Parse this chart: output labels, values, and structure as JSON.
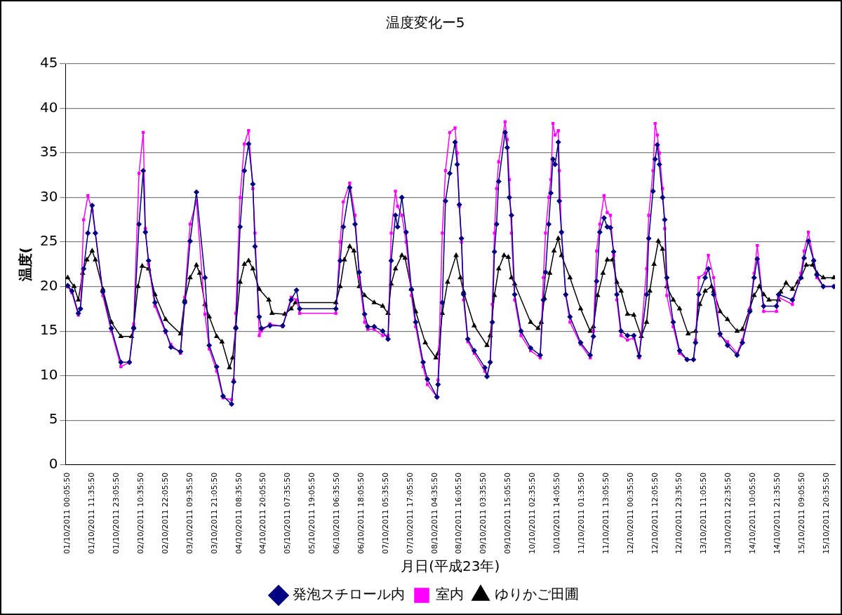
{
  "chart_data": {
    "type": "line",
    "title": "温度変化ー5",
    "xlabel": "月日(平成23年)",
    "ylabel": "温度(",
    "xlim": [
      "2011-09-30T23:05",
      "2011-10-16T00:35"
    ],
    "xticks": [
      {
        "value": "2011-10-01T00:05",
        "label": "01/10/2011 00:05:50"
      },
      {
        "value": "2011-10-01T11:35",
        "label": "01/10/2011 11:35:50"
      },
      {
        "value": "2011-10-01T23:05",
        "label": "01/10/2011 23:05:50"
      },
      {
        "value": "2011-10-02T10:35",
        "label": "02/10/2011 10:35:50"
      },
      {
        "value": "2011-10-02T22:05",
        "label": "02/10/2011 22:05:50"
      },
      {
        "value": "2011-10-03T09:35",
        "label": "03/10/2011 09:35:50"
      },
      {
        "value": "2011-10-03T21:05",
        "label": "03/10/2011 21:05:50"
      },
      {
        "value": "2011-10-04T08:35",
        "label": "04/10/2011 08:35:50"
      },
      {
        "value": "2011-10-04T20:05",
        "label": "04/10/2011 20:05:50"
      },
      {
        "value": "2011-10-05T07:35",
        "label": "05/10/2011 07:35:50"
      },
      {
        "value": "2011-10-05T19:05",
        "label": "05/10/2011 19:05:50"
      },
      {
        "value": "2011-10-06T06:35",
        "label": "06/10/2011 06:35:50"
      },
      {
        "value": "2011-10-06T18:05",
        "label": "06/10/2011 18:05:50"
      },
      {
        "value": "2011-10-07T05:35",
        "label": "07/10/2011 05:35:50"
      },
      {
        "value": "2011-10-07T17:05",
        "label": "07/10/2011 17:05:50"
      },
      {
        "value": "2011-10-08T04:35",
        "label": "08/10/2011 04:35:50"
      },
      {
        "value": "2011-10-08T16:05",
        "label": "08/10/2011 16:05:50"
      },
      {
        "value": "2011-10-09T03:35",
        "label": "09/10/2011 03:35:50"
      },
      {
        "value": "2011-10-09T15:05",
        "label": "09/10/2011 15:05:50"
      },
      {
        "value": "2011-10-10T02:35",
        "label": "10/10/2011 02:35:50"
      },
      {
        "value": "2011-10-10T14:05",
        "label": "10/10/2011 14:05:50"
      },
      {
        "value": "2011-10-11T01:35",
        "label": "11/10/2011 01:35:50"
      },
      {
        "value": "2011-10-11T13:05",
        "label": "11/10/2011 13:05:50"
      },
      {
        "value": "2011-10-12T00:35",
        "label": "12/10/2011 00:35:50"
      },
      {
        "value": "2011-10-12T12:05",
        "label": "12/10/2011 12:05:50"
      },
      {
        "value": "2011-10-12T23:35",
        "label": "12/10/2011 23:35:50"
      },
      {
        "value": "2011-10-13T11:05",
        "label": "13/10/2011 11:05:50"
      },
      {
        "value": "2011-10-13T22:35",
        "label": "13/10/2011 22:35:50"
      },
      {
        "value": "2011-10-14T10:05",
        "label": "14/10/2011 10:05:50"
      },
      {
        "value": "2011-10-14T21:35",
        "label": "14/10/2011 21:35:50"
      },
      {
        "value": "2011-10-15T09:05",
        "label": "15/10/2011 09:05:50"
      },
      {
        "value": "2011-10-15T20:35",
        "label": "15/10/2011 20:35:50"
      }
    ],
    "ylim": [
      0,
      45
    ],
    "yticks": [
      0,
      5,
      10,
      15,
      20,
      25,
      30,
      35,
      40,
      45
    ],
    "grid": "y",
    "legend": "bottom",
    "line_style": "solid",
    "x": [
      "2011-10-01T00:05",
      "2011-10-01T02:05",
      "2011-10-01T05:05",
      "2011-10-01T06:05",
      "2011-10-01T07:35",
      "2011-10-01T09:35",
      "2011-10-01T11:35",
      "2011-10-01T13:05",
      "2011-10-01T16:35",
      "2011-10-01T20:35",
      "2011-10-02T01:05",
      "2011-10-02T05:05",
      "2011-10-02T07:05",
      "2011-10-02T09:35",
      "2011-10-02T11:35",
      "2011-10-02T12:35",
      "2011-10-02T14:05",
      "2011-10-02T17:05",
      "2011-10-02T22:05",
      "2011-10-03T00:35",
      "2011-10-03T05:05",
      "2011-10-03T07:05",
      "2011-10-03T09:35",
      "2011-10-03T12:35",
      "2011-10-03T16:35",
      "2011-10-03T18:35",
      "2011-10-03T22:05",
      "2011-10-04T01:05",
      "2011-10-04T05:05",
      "2011-10-04T06:05",
      "2011-10-04T07:05",
      "2011-10-04T09:05",
      "2011-10-04T11:05",
      "2011-10-04T13:05",
      "2011-10-04T15:05",
      "2011-10-04T16:05",
      "2011-10-04T18:05",
      "2011-10-04T19:05",
      "2011-10-04T23:05",
      "2011-10-05T05:05",
      "2011-10-05T09:05",
      "2011-10-05T11:35",
      "2011-10-05T13:05",
      "2011-10-06T06:05",
      "2011-10-06T08:05",
      "2011-10-06T09:35",
      "2011-10-06T12:35",
      "2011-10-06T15:05",
      "2011-10-06T17:05",
      "2011-10-06T19:35",
      "2011-10-06T21:05",
      "2011-10-07T00:05",
      "2011-10-07T04:05",
      "2011-10-07T06:35",
      "2011-10-07T08:05",
      "2011-10-07T10:05",
      "2011-10-07T11:05",
      "2011-10-07T13:05",
      "2011-10-07T15:05",
      "2011-10-07T17:35",
      "2011-10-07T19:35",
      "2011-10-07T23:05",
      "2011-10-08T01:05",
      "2011-10-08T05:35",
      "2011-10-08T06:05",
      "2011-10-08T08:05",
      "2011-10-08T09:35",
      "2011-10-08T11:35",
      "2011-10-08T14:05",
      "2011-10-08T15:05",
      "2011-10-08T16:05",
      "2011-10-08T17:05",
      "2011-10-08T18:05",
      "2011-10-08T20:05",
      "2011-10-08T23:05",
      "2011-10-09T04:05",
      "2011-10-09T05:05",
      "2011-10-09T06:35",
      "2011-10-09T07:35",
      "2011-10-09T08:35",
      "2011-10-09T09:35",
      "2011-10-09T10:35",
      "2011-10-09T13:35",
      "2011-10-09T14:35",
      "2011-10-09T15:35",
      "2011-10-09T16:35",
      "2011-10-09T18:05",
      "2011-10-09T21:05",
      "2011-10-10T01:35",
      "2011-10-10T06:05",
      "2011-10-10T07:35",
      "2011-10-10T08:35",
      "2011-10-10T10:05",
      "2011-10-10T11:05",
      "2011-10-10T12:05",
      "2011-10-10T13:05",
      "2011-10-10T14:35",
      "2011-10-10T15:05",
      "2011-10-10T16:05",
      "2011-10-10T18:05",
      "2011-10-10T20:05",
      "2011-10-11T01:05",
      "2011-10-11T05:35",
      "2011-10-11T07:05",
      "2011-10-11T08:35",
      "2011-10-11T10:05",
      "2011-10-11T12:05",
      "2011-10-11T13:35",
      "2011-10-11T15:05",
      "2011-10-11T16:35",
      "2011-10-11T18:05",
      "2011-10-11T20:05",
      "2011-10-11T23:05",
      "2011-10-12T02:05",
      "2011-10-12T04:35",
      "2011-10-12T08:05",
      "2011-10-12T09:05",
      "2011-10-12T11:05",
      "2011-10-12T12:05",
      "2011-10-12T13:05",
      "2011-10-12T14:05",
      "2011-10-12T15:35",
      "2011-10-12T16:35",
      "2011-10-12T17:35",
      "2011-10-12T20:35",
      "2011-10-12T23:35",
      "2011-10-13T03:05",
      "2011-10-13T06:05",
      "2011-10-13T07:05",
      "2011-10-13T08:35",
      "2011-10-13T11:35",
      "2011-10-13T13:05",
      "2011-10-13T15:35",
      "2011-10-13T18:35",
      "2011-10-13T22:05",
      "2011-10-14T02:35",
      "2011-10-14T05:05",
      "2011-10-14T08:35",
      "2011-10-14T10:35",
      "2011-10-14T12:05",
      "2011-10-14T15:05",
      "2011-10-14T21:05",
      "2011-10-14T22:05",
      "2011-10-15T04:35",
      "2011-10-15T08:35",
      "2011-10-15T10:05",
      "2011-10-15T12:05",
      "2011-10-15T14:35",
      "2011-10-15T16:05",
      "2011-10-15T19:05",
      "2011-10-16T00:05"
    ],
    "series": [
      {
        "name": "発泡スチロール内",
        "color": "#000080",
        "marker": "diamond",
        "values": [
          20.1,
          19.5,
          17,
          17.5,
          22,
          26,
          29.1,
          26,
          19.4,
          15.3,
          11.5,
          11.5,
          15.3,
          27,
          33,
          26.1,
          22.9,
          18.2,
          15,
          13.2,
          12.7,
          18.2,
          25.1,
          30.6,
          21,
          13.4,
          11,
          7.7,
          6.8,
          9.3,
          15.3,
          26.7,
          33,
          36,
          31.5,
          24.5,
          16.6,
          15.3,
          15.6,
          15.6,
          18.5,
          19.6,
          17.5,
          17.5,
          22.9,
          26.7,
          31.1,
          27,
          21.6,
          16.9,
          15.5,
          15.5,
          15,
          14.1,
          22.9,
          28,
          26.7,
          30,
          26.1,
          19.7,
          16,
          11.5,
          9.6,
          7.6,
          9,
          18.2,
          29.6,
          32.7,
          36.2,
          33.7,
          29.2,
          25.4,
          19.1,
          14.1,
          12.8,
          10.9,
          9.9,
          11.5,
          16,
          23.9,
          27,
          31.8,
          37.3,
          35.6,
          30,
          28,
          19.1,
          15,
          13.1,
          12.3,
          18.5,
          21.6,
          27,
          30.5,
          34.3,
          33.7,
          36.2,
          29.6,
          26.1,
          19.1,
          16.6,
          13.7,
          12.3,
          14.4,
          20.6,
          26.1,
          27.7,
          26.7,
          26.6,
          23.9,
          19.1,
          15,
          14.5,
          14.5,
          12.2,
          19.1,
          25.4,
          30.7,
          34.3,
          35.9,
          33.7,
          30,
          27.5,
          21,
          16,
          12.8,
          11.8,
          11.8,
          13.7,
          19.1,
          21,
          22,
          19.1,
          14.7,
          13.4,
          12.3,
          13.7,
          17.2,
          21,
          23.1,
          17.8,
          17.8,
          19.1,
          18.5,
          21,
          23.2,
          25.1,
          22.9,
          21.3,
          20,
          20
        ]
      },
      {
        "name": "室内",
        "color": "#ff00ff",
        "marker": "square",
        "values": [
          20,
          19.3,
          16.8,
          17.5,
          27.5,
          30.2,
          28.5,
          26,
          19,
          15,
          11,
          11.5,
          15.8,
          32.7,
          37.3,
          26.5,
          22.5,
          17.8,
          14.8,
          13.5,
          12.5,
          18.8,
          27,
          29.6,
          16.9,
          13,
          10.5,
          7.5,
          7.3,
          9.5,
          17,
          30,
          36,
          37.5,
          31,
          26,
          14.5,
          15,
          15.8,
          15.5,
          18.8,
          18.5,
          17,
          17,
          25,
          29.5,
          31.6,
          28,
          21,
          16,
          15.2,
          15.2,
          14.5,
          14.5,
          26,
          30.7,
          29,
          28,
          25,
          19,
          15.5,
          11,
          9,
          7.6,
          9.5,
          26,
          33,
          37.3,
          37.8,
          35,
          29,
          25,
          18.5,
          13.8,
          12.5,
          10.5,
          10,
          11.5,
          18,
          26,
          31,
          34,
          38.5,
          36.5,
          32,
          26,
          18.5,
          14.5,
          12.8,
          12,
          21,
          26,
          30,
          32,
          38.3,
          37,
          37.5,
          33,
          26,
          19,
          16,
          13.5,
          12,
          15,
          24,
          27,
          30.2,
          28.3,
          28,
          23.5,
          18.5,
          14.5,
          14,
          14.2,
          12,
          22,
          28,
          33,
          38.3,
          37,
          35,
          31,
          26.5,
          19,
          15.5,
          12.5,
          11.8,
          11.8,
          14,
          21,
          21.5,
          23.5,
          21,
          14.5,
          13.8,
          12.5,
          14,
          17.5,
          21.5,
          24.6,
          17.2,
          17.2,
          18.8,
          18,
          21.5,
          24,
          26.1,
          23,
          21,
          20,
          20
        ]
      },
      {
        "name": "ゆりかご田圃",
        "color": "#000000",
        "marker": "triangle",
        "x": [
          "2011-10-01T00:05",
          "2011-10-01T03:05",
          "2011-10-01T05:05",
          "2011-10-01T07:05",
          "2011-10-01T09:05",
          "2011-10-01T11:35",
          "2011-10-01T13:05",
          "2011-10-01T16:35",
          "2011-10-01T20:35",
          "2011-10-02T01:05",
          "2011-10-02T06:05",
          "2011-10-02T07:05",
          "2011-10-02T09:05",
          "2011-10-02T11:05",
          "2011-10-02T14:05",
          "2011-10-02T17:05",
          "2011-10-02T22:05",
          "2011-10-03T05:05",
          "2011-10-03T07:05",
          "2011-10-03T09:35",
          "2011-10-03T12:35",
          "2011-10-03T14:05",
          "2011-10-03T16:35",
          "2011-10-03T18:35",
          "2011-10-03T22:05",
          "2011-10-04T00:35",
          "2011-10-04T04:05",
          "2011-10-04T05:35",
          "2011-10-04T07:05",
          "2011-10-04T09:05",
          "2011-10-04T11:05",
          "2011-10-04T13:05",
          "2011-10-04T15:05",
          "2011-10-04T18:05",
          "2011-10-04T22:35",
          "2011-10-05T00:05",
          "2011-10-05T06:05",
          "2011-10-05T09:05",
          "2011-10-05T11:05",
          "2011-10-06T06:05",
          "2011-10-06T08:05",
          "2011-10-06T10:05",
          "2011-10-06T12:35",
          "2011-10-06T14:35",
          "2011-10-06T17:05",
          "2011-10-06T19:35",
          "2011-10-07T00:05",
          "2011-10-07T04:05",
          "2011-10-07T06:35",
          "2011-10-07T08:05",
          "2011-10-07T10:05",
          "2011-10-07T13:05",
          "2011-10-07T14:35",
          "2011-10-07T17:35",
          "2011-10-07T19:35",
          "2011-10-08T00:05",
          "2011-10-08T05:05",
          "2011-10-08T06:05",
          "2011-10-08T08:05",
          "2011-10-08T10:35",
          "2011-10-08T14:35",
          "2011-10-08T16:35",
          "2011-10-08T18:05",
          "2011-10-08T23:05",
          "2011-10-09T05:05",
          "2011-10-09T06:35",
          "2011-10-09T08:35",
          "2011-10-09T10:35",
          "2011-10-09T13:05",
          "2011-10-09T15:05",
          "2011-10-09T16:35",
          "2011-10-09T18:05",
          "2011-10-10T01:35",
          "2011-10-10T05:05",
          "2011-10-10T06:35",
          "2011-10-10T08:05",
          "2011-10-10T10:35",
          "2011-10-10T12:35",
          "2011-10-10T14:35",
          "2011-10-10T16:05",
          "2011-10-10T20:05",
          "2011-10-11T01:05",
          "2011-10-11T05:35",
          "2011-10-11T07:05",
          "2011-10-11T09:05",
          "2011-10-11T11:35",
          "2011-10-11T13:35",
          "2011-10-11T16:05",
          "2011-10-11T18:05",
          "2011-10-11T20:05",
          "2011-10-11T23:05",
          "2011-10-12T02:05",
          "2011-10-12T05:35",
          "2011-10-12T08:05",
          "2011-10-12T09:35",
          "2011-10-12T11:35",
          "2011-10-12T13:35",
          "2011-10-12T15:35",
          "2011-10-12T17:35",
          "2011-10-12T20:35",
          "2011-10-12T23:35",
          "2011-10-13T03:35",
          "2011-10-13T07:05",
          "2011-10-13T09:05",
          "2011-10-13T11:35",
          "2011-10-13T14:35",
          "2011-10-13T15:35",
          "2011-10-13T18:35",
          "2011-10-13T22:05",
          "2011-10-14T02:35",
          "2011-10-14T05:05",
          "2011-10-14T08:35",
          "2011-10-14T10:35",
          "2011-10-14T13:05",
          "2011-10-14T15:05",
          "2011-10-14T17:35",
          "2011-10-14T22:05",
          "2011-10-14T23:05",
          "2011-10-15T01:35",
          "2011-10-15T04:35",
          "2011-10-15T07:05",
          "2011-10-15T08:35",
          "2011-10-15T11:05",
          "2011-10-15T14:05",
          "2011-10-15T16:05",
          "2011-10-15T19:05",
          "2011-10-16T00:05"
        ],
        "values": [
          21,
          20,
          18.5,
          21.5,
          23,
          24,
          23,
          19.7,
          16,
          14.4,
          14.4,
          15.5,
          20,
          22.3,
          22,
          19.1,
          16.3,
          14.7,
          18.5,
          21,
          22.4,
          21.5,
          18,
          16.6,
          14.4,
          13.8,
          10.9,
          12,
          15.5,
          20.5,
          22.5,
          22.9,
          22,
          19.7,
          18.5,
          17,
          16.9,
          17.5,
          18.2,
          18.2,
          20,
          23,
          24.5,
          24,
          20,
          19,
          18.2,
          17.8,
          17,
          20.3,
          22,
          23.5,
          23.2,
          19.7,
          17.2,
          13.7,
          12,
          12.5,
          17,
          20.5,
          23.5,
          21,
          19.4,
          15.6,
          13.4,
          14.5,
          19,
          22,
          23.5,
          23.3,
          21,
          20.3,
          16,
          15.3,
          16,
          18.7,
          21.5,
          24,
          25.4,
          23.5,
          21,
          17.5,
          15,
          15.5,
          19,
          21.5,
          23,
          23,
          20.5,
          19.5,
          16.9,
          16.8,
          14.4,
          16,
          19.5,
          22.5,
          25.1,
          24.2,
          20,
          18.5,
          17.5,
          14.7,
          15,
          18,
          19.5,
          20,
          19.5,
          17.2,
          16.3,
          15,
          15.2,
          17.5,
          19,
          20,
          19.1,
          18.5,
          18.5,
          19.4,
          20.4,
          19.7,
          20.5,
          21,
          22.4,
          22.4,
          21.5,
          21,
          21
        ]
      }
    ]
  }
}
